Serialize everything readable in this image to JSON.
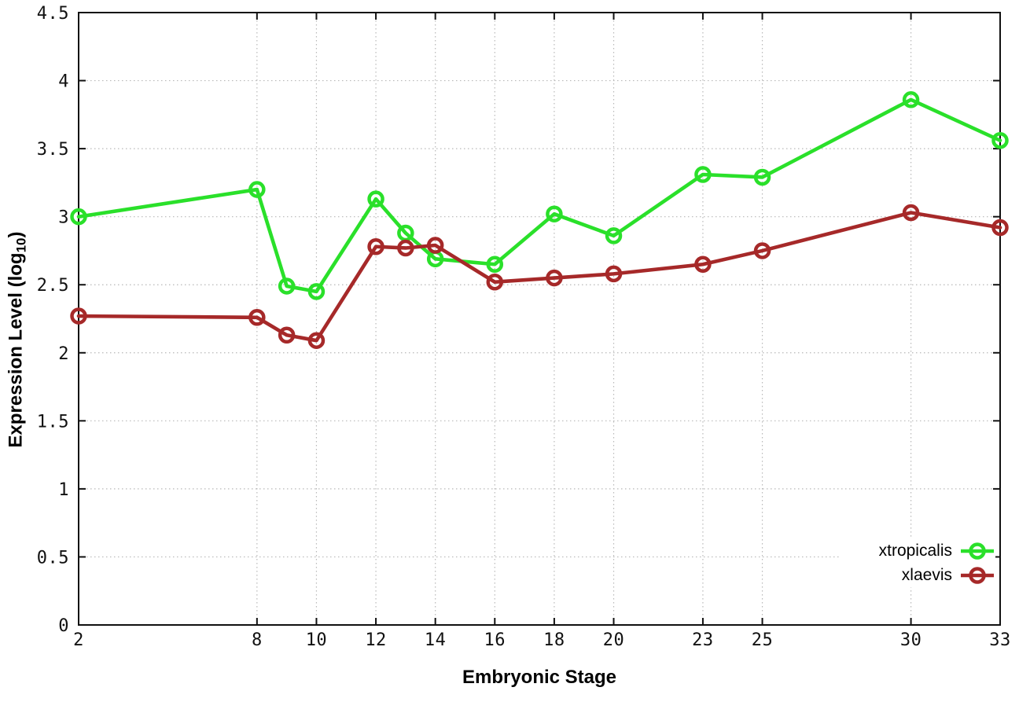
{
  "page": {
    "background_color": "#ffffff",
    "axis_color": "#111111",
    "grid_color": "#b8b8b8"
  },
  "chart_data": {
    "type": "line",
    "title": "",
    "xlabel": "Embryonic Stage",
    "ylabel": "Expression Level (log10)",
    "ylabel_parts": {
      "pre": "Expression Level (log",
      "sub": "10",
      "post": ")"
    },
    "xlim": [
      2,
      33
    ],
    "ylim": [
      0,
      4.5
    ],
    "x_ticks": [
      2,
      8,
      10,
      12,
      14,
      16,
      18,
      20,
      23,
      25,
      30,
      33
    ],
    "y_ticks": [
      0,
      0.5,
      1,
      1.5,
      2,
      2.5,
      3,
      3.5,
      4,
      4.5
    ],
    "grid": true,
    "legend_position": "inside-bottom-right",
    "x": [
      2,
      8,
      9,
      10,
      12,
      13,
      14,
      16,
      18,
      20,
      23,
      25,
      30,
      33
    ],
    "series": [
      {
        "name": "xtropicalis",
        "color": "#2ae02a",
        "values": [
          3.0,
          3.2,
          2.49,
          2.45,
          3.13,
          2.88,
          2.69,
          2.65,
          3.02,
          2.86,
          3.31,
          3.29,
          3.86,
          3.56
        ]
      },
      {
        "name": "xlaevis",
        "color": "#a62929",
        "values": [
          2.27,
          2.26,
          2.13,
          2.09,
          2.78,
          2.77,
          2.79,
          2.52,
          2.55,
          2.58,
          2.65,
          2.75,
          3.03,
          2.92
        ]
      }
    ]
  }
}
